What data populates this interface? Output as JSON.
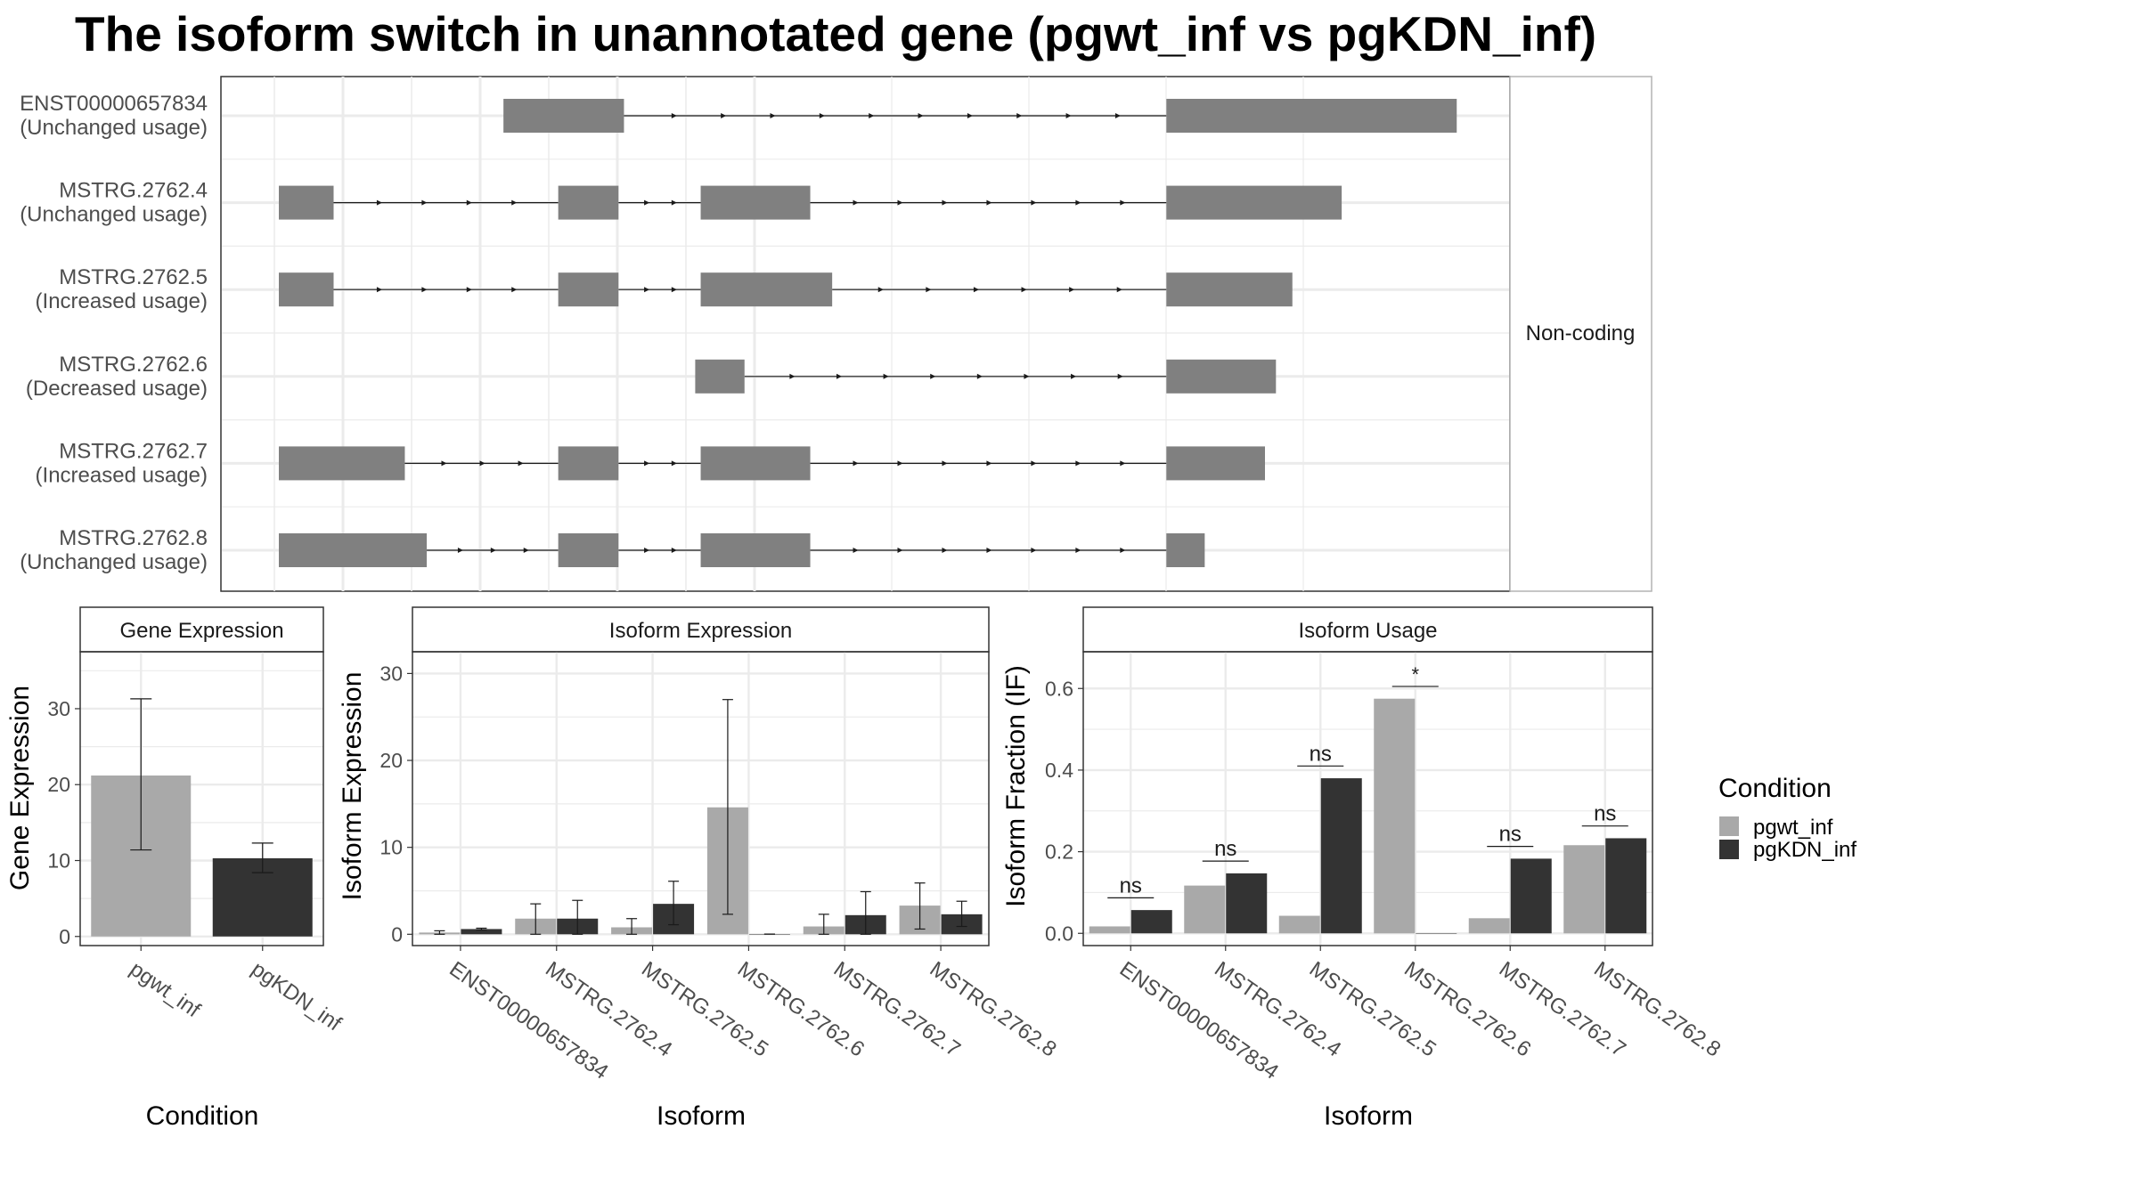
{
  "title": "The isoform switch in unannotated gene (pgwt_inf vs pgKDN_inf)",
  "colors": {
    "pgwt_inf": "#a9a9a9",
    "pgKDN_inf": "#333333",
    "exon": "#808080",
    "grid": "#ebebeb",
    "strip": "#ffffff"
  },
  "legend": {
    "title": "Condition",
    "items": [
      {
        "label": "pgwt_inf",
        "color": "#a9a9a9"
      },
      {
        "label": "pgKDN_inf",
        "color": "#333333"
      }
    ]
  },
  "chart_data": [
    {
      "type": "isoform-structure",
      "strip_label": "Non-coding",
      "x_range": [
        0,
        100
      ],
      "isoforms": [
        {
          "name": "ENST00000657834",
          "status": "(Unchanged usage)",
          "exons": [
            [
              20.5,
              31.5
            ],
            [
              81,
              107.5
            ]
          ]
        },
        {
          "name": "MSTRG.2762.4",
          "status": "(Unchanged usage)",
          "exons": [
            [
              0,
              5
            ],
            [
              25.5,
              31
            ],
            [
              38.5,
              48.5
            ],
            [
              81,
              97
            ]
          ]
        },
        {
          "name": "MSTRG.2762.5",
          "status": "(Increased usage)",
          "exons": [
            [
              0,
              5
            ],
            [
              25.5,
              31
            ],
            [
              38.5,
              50.5
            ],
            [
              81,
              92.5
            ]
          ]
        },
        {
          "name": "MSTRG.2762.6",
          "status": "(Decreased usage)",
          "exons": [
            [
              38,
              42.5
            ],
            [
              81,
              91
            ]
          ]
        },
        {
          "name": "MSTRG.2762.7",
          "status": "(Increased usage)",
          "exons": [
            [
              0,
              11.5
            ],
            [
              25.5,
              31
            ],
            [
              38.5,
              48.5
            ],
            [
              81,
              90
            ]
          ]
        },
        {
          "name": "MSTRG.2762.8",
          "status": "(Unchanged usage)",
          "exons": [
            [
              0,
              13.5
            ],
            [
              25.5,
              31
            ],
            [
              38.5,
              48.5
            ],
            [
              81,
              84.5
            ]
          ]
        }
      ]
    },
    {
      "type": "bar",
      "strip_label": "Gene Expression",
      "xlabel": "Condition",
      "ylabel": "Gene Expression",
      "ylim": [
        -1.2,
        37.5
      ],
      "yticks": [
        0,
        10,
        20,
        30
      ],
      "categories": [
        "pgwt_inf",
        "pgKDN_inf"
      ],
      "values": [
        21.2,
        10.3
      ],
      "errors": [
        [
          11.4,
          31.3
        ],
        [
          8.4,
          12.3
        ]
      ]
    },
    {
      "type": "bar",
      "strip_label": "Isoform Expression",
      "xlabel": "Isoform",
      "ylabel": "Isoform Expression",
      "ylim": [
        -1.3,
        32.5
      ],
      "yticks": [
        0,
        10,
        20,
        30
      ],
      "categories": [
        "ENST00000657834",
        "MSTRG.2762.4",
        "MSTRG.2762.5",
        "MSTRG.2762.6",
        "MSTRG.2762.7",
        "MSTRG.2762.8"
      ],
      "series": [
        {
          "name": "pgwt_inf",
          "values": [
            0.2,
            1.8,
            0.8,
            14.6,
            0.9,
            3.3
          ],
          "errors": [
            [
              0,
              0.4
            ],
            [
              0,
              3.5
            ],
            [
              0,
              1.8
            ],
            [
              2.3,
              27.0
            ],
            [
              0,
              2.3
            ],
            [
              0.6,
              5.9
            ]
          ]
        },
        {
          "name": "pgKDN_inf",
          "values": [
            0.6,
            1.8,
            3.5,
            0.02,
            2.2,
            2.3
          ],
          "errors": [
            [
              0.5,
              0.7
            ],
            [
              0,
              3.9
            ],
            [
              1.1,
              6.1
            ],
            [
              0.02,
              0.02
            ],
            [
              0,
              4.9
            ],
            [
              0.9,
              3.8
            ]
          ]
        }
      ]
    },
    {
      "type": "bar",
      "strip_label": "Isoform Usage",
      "xlabel": "Isoform",
      "ylabel": "Isoform Fraction (IF)",
      "ylim": [
        -0.03,
        0.69
      ],
      "yticks": [
        0.0,
        0.2,
        0.4,
        0.6
      ],
      "ytick_labels": [
        "0.0",
        "0.2",
        "0.4",
        "0.6"
      ],
      "categories": [
        "ENST00000657834",
        "MSTRG.2762.4",
        "MSTRG.2762.5",
        "MSTRG.2762.6",
        "MSTRG.2762.7",
        "MSTRG.2762.8"
      ],
      "series": [
        {
          "name": "pgwt_inf",
          "values": [
            0.017,
            0.117,
            0.043,
            0.575,
            0.037,
            0.216
          ]
        },
        {
          "name": "pgKDN_inf",
          "values": [
            0.057,
            0.147,
            0.38,
            0.0,
            0.183,
            0.233
          ]
        }
      ],
      "significance": [
        {
          "label": "ns",
          "y": 0.087
        },
        {
          "label": "ns",
          "y": 0.177
        },
        {
          "label": "ns",
          "y": 0.41
        },
        {
          "label": "*",
          "y": 0.605
        },
        {
          "label": "ns",
          "y": 0.213
        },
        {
          "label": "ns",
          "y": 0.263
        }
      ]
    }
  ]
}
